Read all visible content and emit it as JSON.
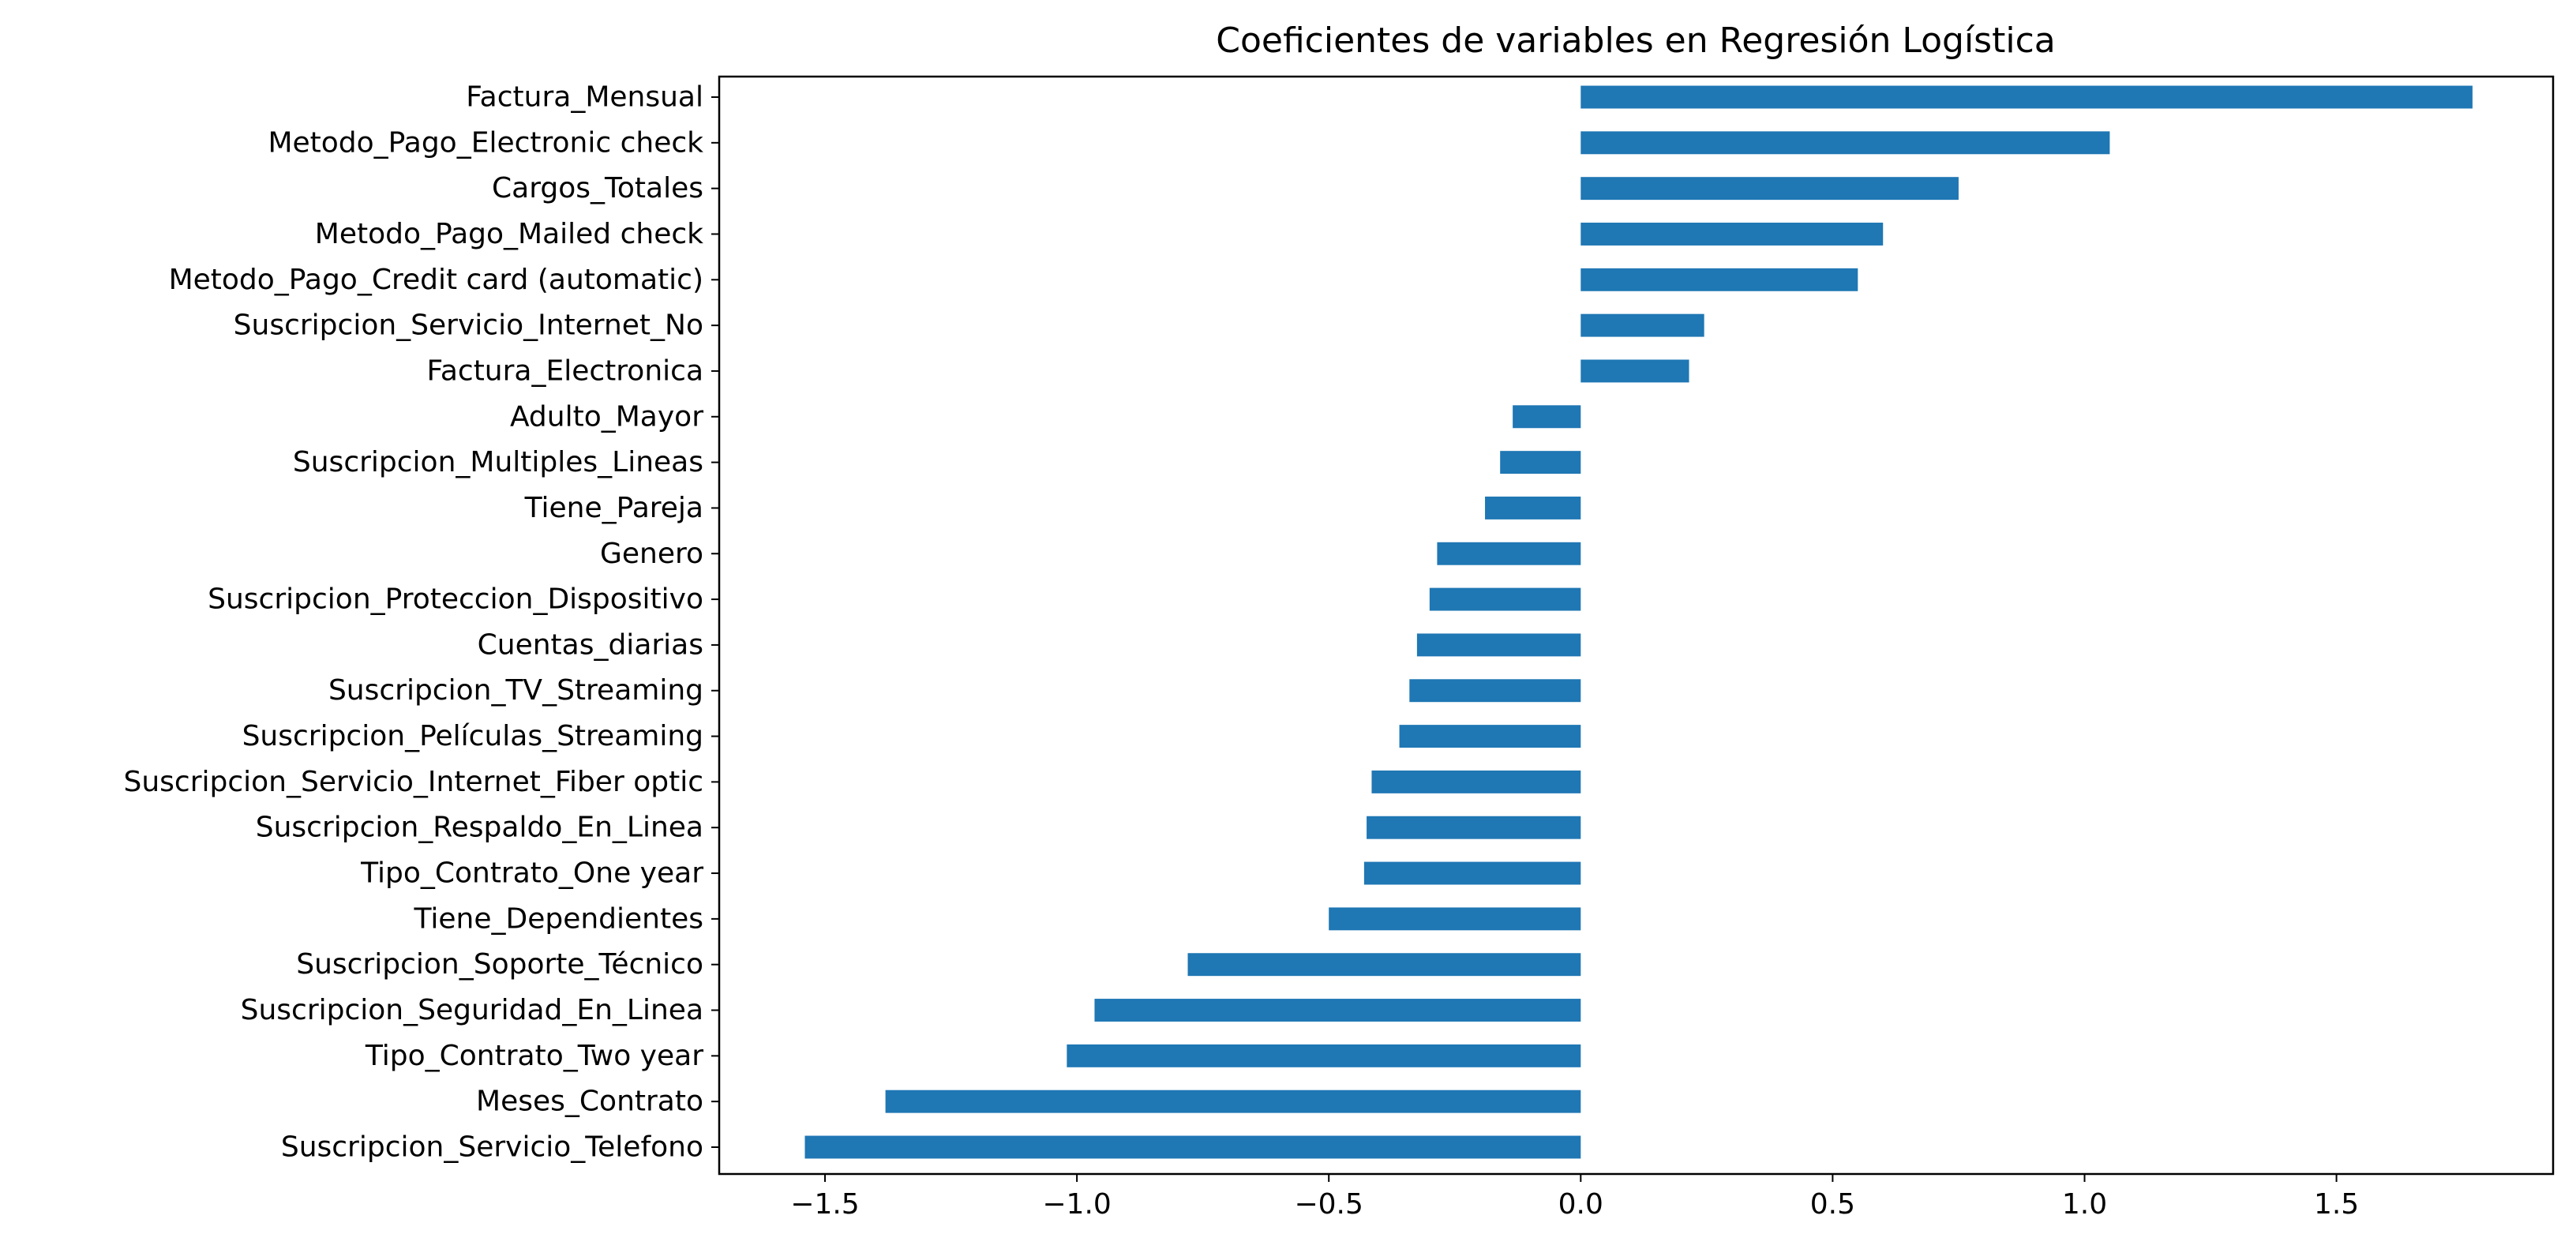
{
  "chart_data": {
    "type": "bar",
    "orientation": "horizontal",
    "title": "Coeficientes de variables en Regresión Logística",
    "xlabel": "",
    "ylabel": "",
    "xlim": [
      -1.71,
      1.93
    ],
    "xticks": [
      -1.5,
      -1.0,
      -0.5,
      0.0,
      0.5,
      1.0,
      1.5
    ],
    "xtick_labels": [
      "−1.5",
      "−1.0",
      "−0.5",
      "0.0",
      "0.5",
      "1.0",
      "1.5"
    ],
    "grid": false,
    "legend": "none",
    "bar_color": "#1f77b4",
    "categories": [
      "Factura_Mensual",
      "Metodo_Pago_Electronic check",
      "Cargos_Totales",
      "Metodo_Pago_Mailed check",
      "Metodo_Pago_Credit card (automatic)",
      "Suscripcion_Servicio_Internet_No",
      "Factura_Electronica",
      "Adulto_Mayor",
      "Suscripcion_Multiples_Lineas",
      "Tiene_Pareja",
      "Genero",
      "Suscripcion_Proteccion_Dispositivo",
      "Cuentas_diarias",
      "Suscripcion_TV_Streaming",
      "Suscripcion_Películas_Streaming",
      "Suscripcion_Servicio_Internet_Fiber optic",
      "Suscripcion_Respaldo_En_Linea",
      "Tipo_Contrato_One year",
      "Tiene_Dependientes",
      "Suscripcion_Soporte_Técnico",
      "Suscripcion_Seguridad_En_Linea",
      "Tipo_Contrato_Two year",
      "Meses_Contrato",
      "Suscripcion_Servicio_Telefono"
    ],
    "values": [
      1.77,
      1.05,
      0.75,
      0.6,
      0.55,
      0.245,
      0.215,
      -0.135,
      -0.16,
      -0.19,
      -0.285,
      -0.3,
      -0.325,
      -0.34,
      -0.36,
      -0.415,
      -0.425,
      -0.43,
      -0.5,
      -0.78,
      -0.965,
      -1.02,
      -1.38,
      -1.54
    ]
  }
}
